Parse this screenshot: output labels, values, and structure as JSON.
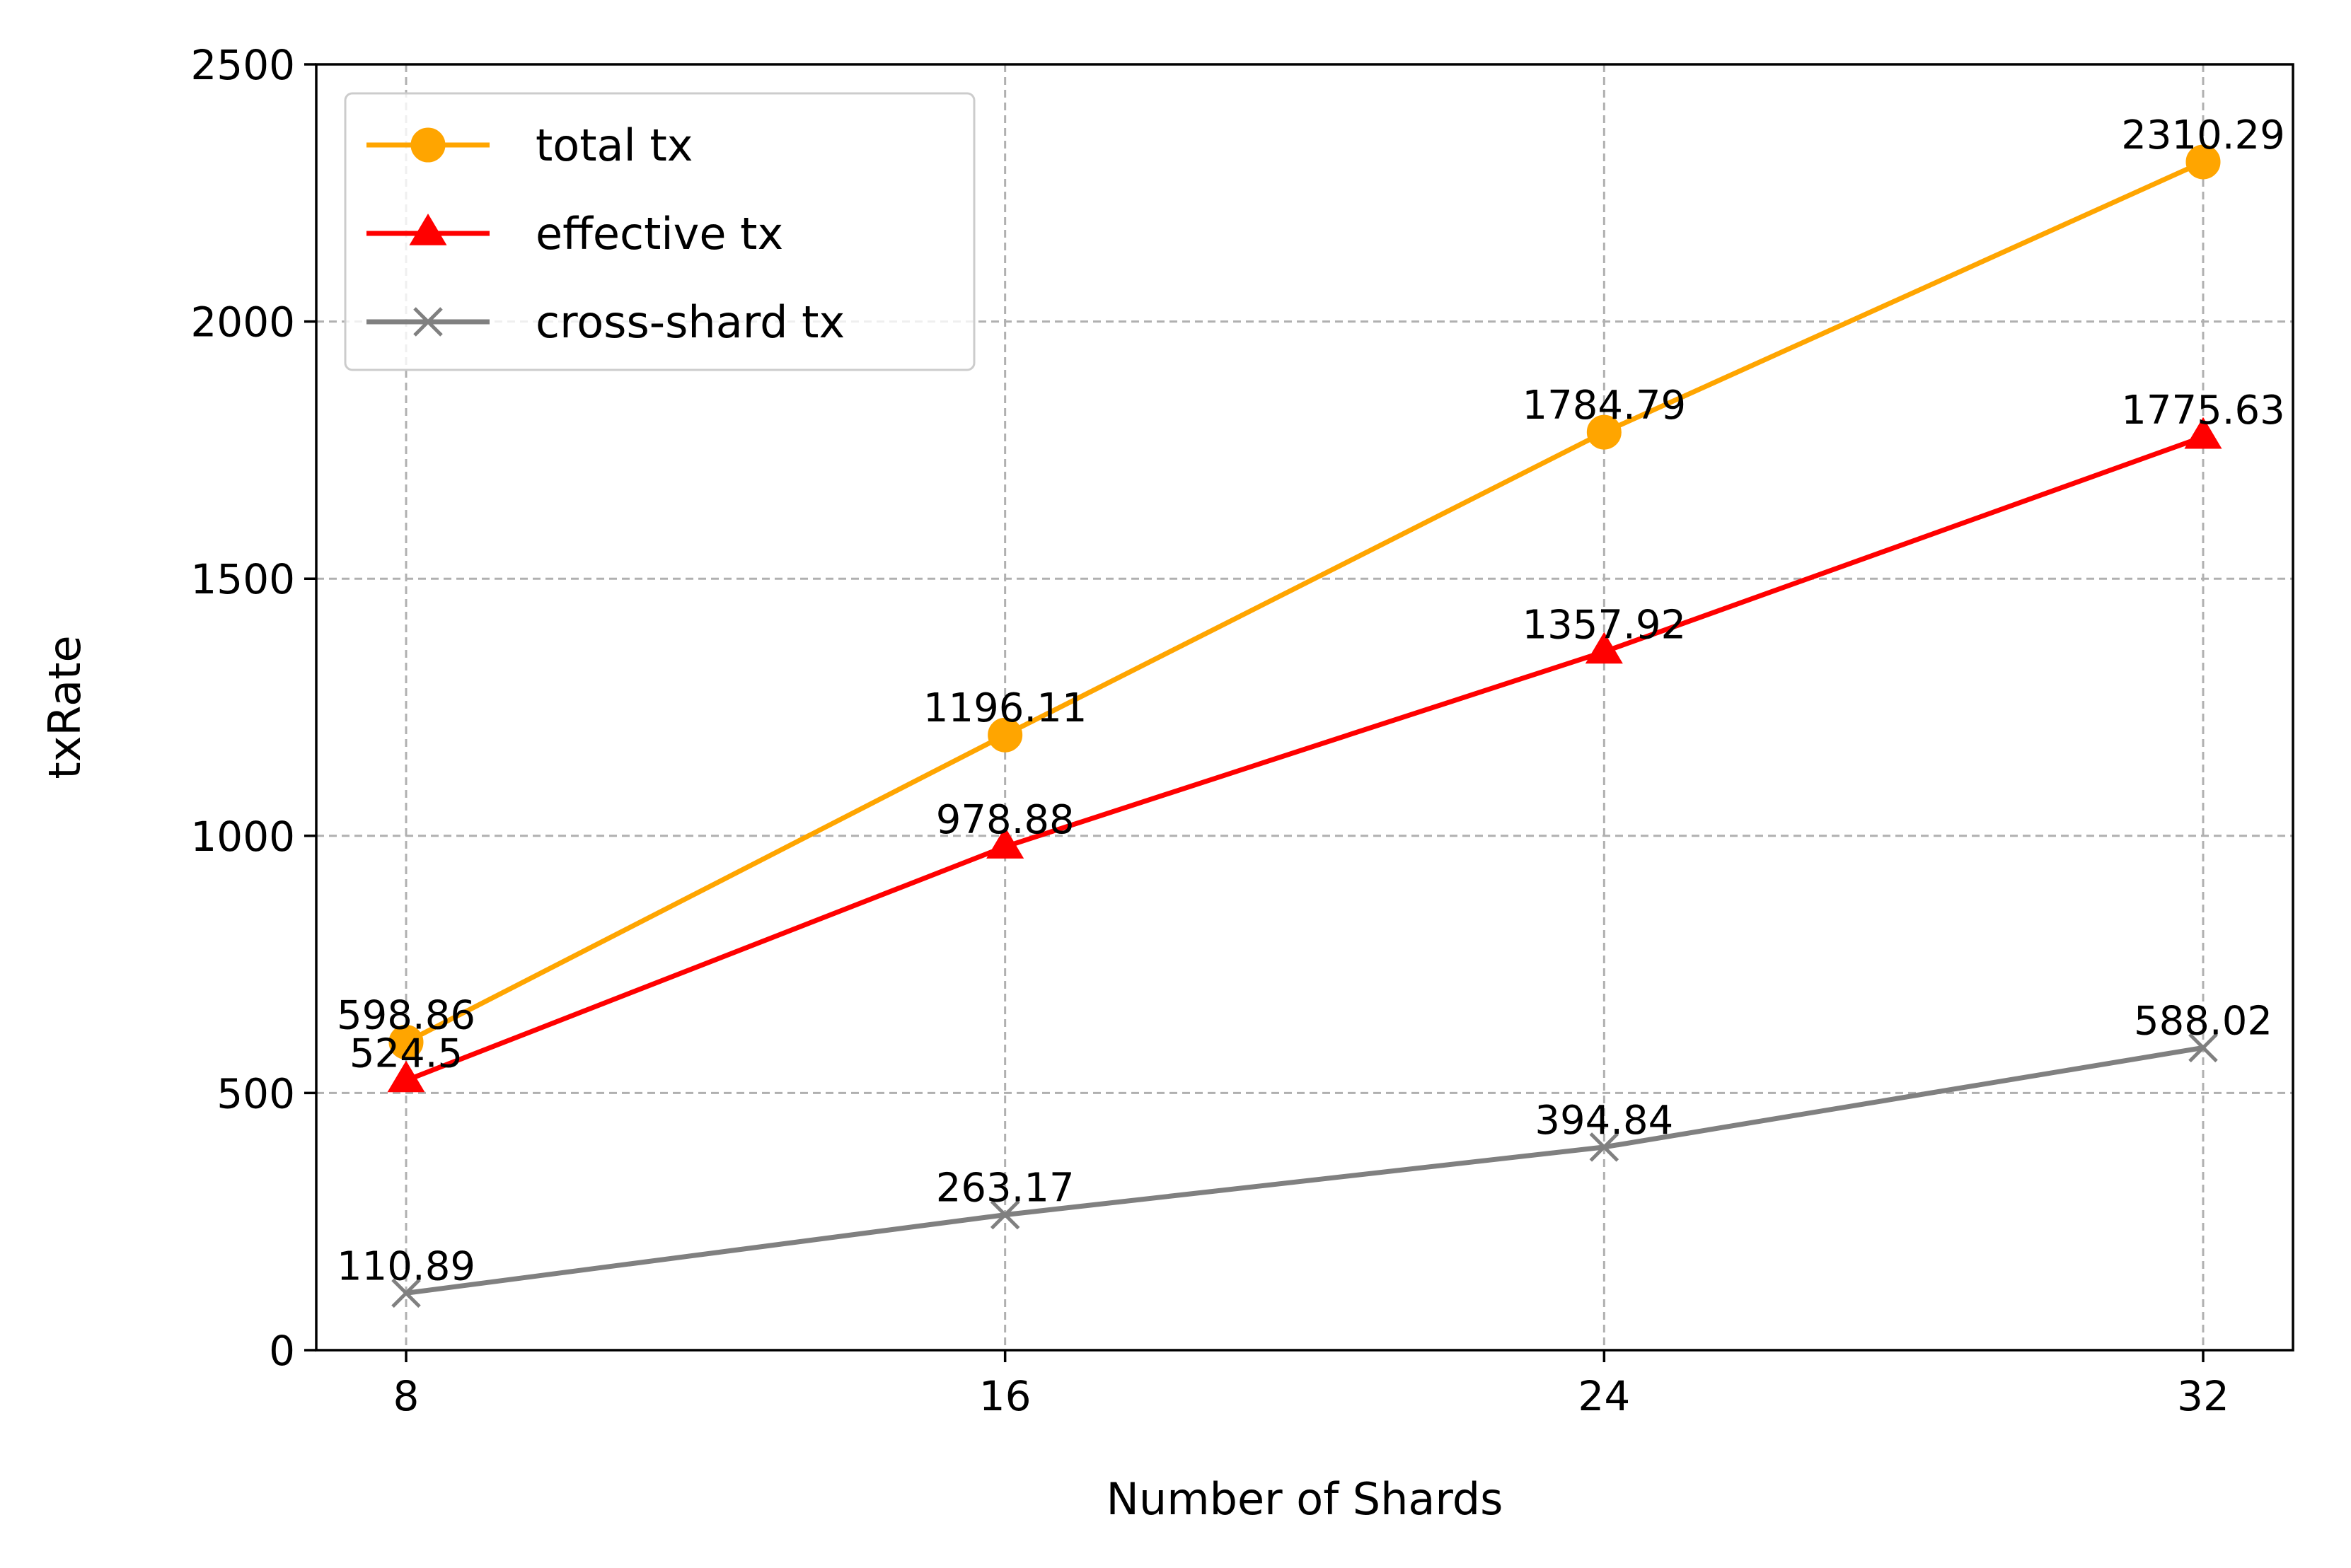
{
  "chart_data": {
    "type": "line",
    "title": "",
    "xlabel": "Number of Shards",
    "ylabel": "txRate",
    "x": [
      8,
      16,
      24,
      32
    ],
    "x_tick_labels": [
      "8",
      "16",
      "24",
      "32"
    ],
    "y_ticks": [
      0,
      500,
      1000,
      1500,
      2000,
      2500
    ],
    "y_tick_labels": [
      "0",
      "500",
      "1000",
      "1500",
      "2000",
      "2500"
    ],
    "xlim": [
      6.8,
      33.2
    ],
    "ylim": [
      0,
      2500
    ],
    "grid": true,
    "legend_position": "top-left",
    "series": [
      {
        "name": "total tx",
        "color": "#FFA500",
        "marker": "circle",
        "values": [
          598.86,
          1196.11,
          1784.79,
          2310.29
        ],
        "labels": [
          "598.86",
          "1196.11",
          "1784.79",
          "2310.29"
        ]
      },
      {
        "name": "effective tx",
        "color": "#FF0000",
        "marker": "triangle",
        "values": [
          524.5,
          978.88,
          1357.92,
          1775.63
        ],
        "labels": [
          "524.5",
          "978.88",
          "1357.92",
          "1775.63"
        ]
      },
      {
        "name": "cross-shard tx",
        "color": "#808080",
        "marker": "x",
        "values": [
          110.89,
          263.17,
          394.84,
          588.02
        ],
        "labels": [
          "110.89",
          "263.17",
          "394.84",
          "588.02"
        ]
      }
    ]
  }
}
